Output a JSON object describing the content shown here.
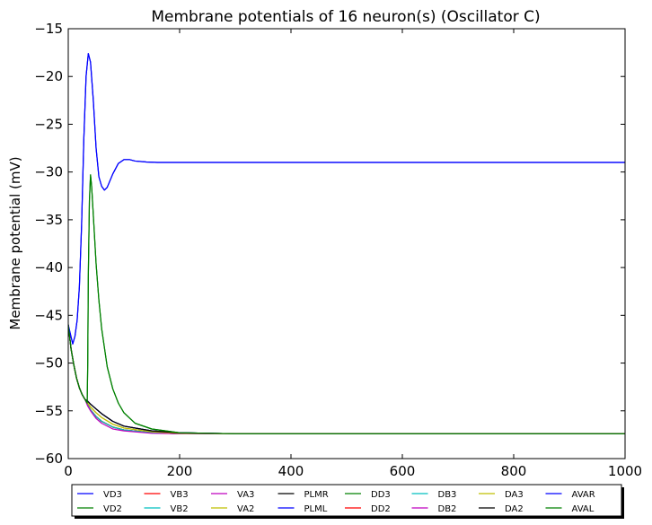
{
  "chart_data": {
    "type": "line",
    "title": "Membrane potentials of 16 neuron(s) (Oscillator C)",
    "xlabel": "",
    "ylabel": "Membrane potential (mV)",
    "xlim": [
      0,
      1000
    ],
    "ylim": [
      -60,
      -15
    ],
    "xticks": [
      0,
      200,
      400,
      600,
      800,
      1000
    ],
    "yticks": [
      -60,
      -55,
      -50,
      -45,
      -40,
      -35,
      -30,
      -25,
      -20,
      -15
    ],
    "grid": false,
    "legend_position": "bottom",
    "series": [
      {
        "name": "VD3",
        "color": "#0000ff",
        "x": [
          0,
          4,
          8,
          12,
          16,
          20,
          24,
          28,
          32,
          36,
          40,
          45,
          50,
          55,
          60,
          65,
          70,
          80,
          90,
          100,
          110,
          120,
          140,
          160,
          200,
          300,
          400,
          600,
          800,
          1000
        ],
        "y": [
          -46,
          -47,
          -48,
          -47.2,
          -45.5,
          -42,
          -35.5,
          -26.5,
          -20,
          -17.6,
          -18.5,
          -22.5,
          -27.5,
          -30.5,
          -31.5,
          -31.9,
          -31.6,
          -30.2,
          -29.1,
          -28.7,
          -28.7,
          -28.85,
          -28.95,
          -29,
          -29,
          -29,
          -29,
          -29,
          -29,
          -29
        ]
      },
      {
        "name": "VD2",
        "color": "#008000",
        "x": [
          0,
          5,
          10,
          15,
          20,
          25,
          30,
          34,
          35,
          36,
          38,
          40,
          42,
          45,
          50,
          55,
          60,
          70,
          80,
          90,
          100,
          120,
          150,
          200,
          300,
          500,
          1000
        ],
        "y": [
          -46,
          -48.5,
          -50.2,
          -51.6,
          -52.6,
          -53.3,
          -53.8,
          -54.2,
          -50,
          -41,
          -33,
          -30.3,
          -31.5,
          -34.5,
          -39.6,
          -43.4,
          -46.4,
          -50.4,
          -52.7,
          -54.2,
          -55.2,
          -56.3,
          -56.9,
          -57.3,
          -57.4,
          -57.4,
          -57.4
        ]
      },
      {
        "name": "VB3",
        "color": "#ff0000",
        "x": [
          0,
          5,
          10,
          15,
          20,
          25,
          30,
          35,
          40,
          50,
          60,
          80,
          100,
          150,
          200,
          300,
          500,
          1000
        ],
        "y": [
          -46,
          -48.5,
          -50.2,
          -51.6,
          -52.6,
          -53.3,
          -53.8,
          -54.4,
          -54.9,
          -55.6,
          -56.1,
          -56.7,
          -57,
          -57.3,
          -57.4,
          -57.4,
          -57.4,
          -57.4
        ]
      },
      {
        "name": "VB2",
        "color": "#00bfbf",
        "x": [
          0,
          5,
          10,
          15,
          20,
          25,
          30,
          35,
          40,
          50,
          60,
          80,
          100,
          150,
          200,
          300,
          500,
          1000
        ],
        "y": [
          -46,
          -48.5,
          -50.2,
          -51.6,
          -52.6,
          -53.3,
          -53.8,
          -54.4,
          -54.9,
          -55.6,
          -56.1,
          -56.7,
          -57,
          -57.3,
          -57.4,
          -57.4,
          -57.4,
          -57.4
        ]
      },
      {
        "name": "VA3",
        "color": "#bf00bf",
        "x": [
          0,
          5,
          10,
          15,
          20,
          25,
          30,
          35,
          40,
          50,
          60,
          80,
          100,
          150,
          200,
          300,
          500,
          1000
        ],
        "y": [
          -46,
          -48.5,
          -50.2,
          -51.6,
          -52.6,
          -53.3,
          -53.8,
          -54.4,
          -54.9,
          -55.6,
          -56.1,
          -56.7,
          -57,
          -57.3,
          -57.4,
          -57.4,
          -57.4,
          -57.4
        ]
      },
      {
        "name": "VA2",
        "color": "#bfbf00",
        "x": [
          0,
          5,
          10,
          15,
          20,
          25,
          30,
          35,
          40,
          50,
          60,
          80,
          100,
          150,
          200,
          300,
          500,
          1000
        ],
        "y": [
          -46,
          -48.5,
          -50.2,
          -51.6,
          -52.6,
          -53.3,
          -53.8,
          -54.2,
          -54.6,
          -55.2,
          -55.7,
          -56.4,
          -56.8,
          -57.2,
          -57.35,
          -57.4,
          -57.4,
          -57.4
        ]
      },
      {
        "name": "PLMR",
        "color": "#000000",
        "x": [
          0,
          5,
          10,
          15,
          20,
          25,
          30,
          35,
          40,
          50,
          60,
          80,
          100,
          150,
          200,
          300,
          500,
          1000
        ],
        "y": [
          -46,
          -48.5,
          -50.2,
          -51.6,
          -52.6,
          -53.3,
          -53.8,
          -54,
          -54.3,
          -54.8,
          -55.3,
          -56.1,
          -56.6,
          -57.1,
          -57.3,
          -57.4,
          -57.4,
          -57.4
        ]
      },
      {
        "name": "PLML",
        "color": "#0000ff",
        "x": [
          0,
          5,
          10,
          15,
          20,
          25,
          30,
          35,
          40,
          50,
          60,
          80,
          100,
          150,
          200,
          300,
          500,
          1000
        ],
        "y": [
          -46,
          -48.5,
          -50.2,
          -51.6,
          -52.6,
          -53.3,
          -53.8,
          -54,
          -54.3,
          -54.8,
          -55.3,
          -56.1,
          -56.6,
          -57.1,
          -57.3,
          -57.4,
          -57.4,
          -57.4
        ]
      },
      {
        "name": "DD3",
        "color": "#008000",
        "x": [
          0,
          5,
          10,
          15,
          20,
          25,
          30,
          35,
          40,
          50,
          60,
          80,
          100,
          150,
          200,
          300,
          500,
          1000
        ],
        "y": [
          -46,
          -48.5,
          -50.2,
          -51.6,
          -52.6,
          -53.3,
          -53.8,
          -54.4,
          -54.9,
          -55.6,
          -56.1,
          -56.7,
          -57,
          -57.3,
          -57.4,
          -57.4,
          -57.4,
          -57.4
        ]
      },
      {
        "name": "DD2",
        "color": "#ff0000",
        "x": [
          0,
          5,
          10,
          15,
          20,
          25,
          30,
          35,
          40,
          50,
          60,
          80,
          100,
          150,
          200,
          300,
          500,
          1000
        ],
        "y": [
          -46,
          -48.5,
          -50.2,
          -51.6,
          -52.6,
          -53.3,
          -53.8,
          -54.4,
          -54.9,
          -55.6,
          -56.1,
          -56.7,
          -57,
          -57.3,
          -57.4,
          -57.4,
          -57.4,
          -57.4
        ]
      },
      {
        "name": "DB3",
        "color": "#00bfbf",
        "x": [
          0,
          5,
          10,
          15,
          20,
          25,
          30,
          35,
          40,
          50,
          60,
          80,
          100,
          150,
          200,
          300,
          500,
          1000
        ],
        "y": [
          -46,
          -48.5,
          -50.2,
          -51.6,
          -52.6,
          -53.3,
          -53.8,
          -54.4,
          -54.9,
          -55.6,
          -56.1,
          -56.7,
          -57,
          -57.3,
          -57.4,
          -57.4,
          -57.4,
          -57.4
        ]
      },
      {
        "name": "DB2",
        "color": "#bf00bf",
        "x": [
          0,
          5,
          10,
          15,
          20,
          25,
          30,
          35,
          40,
          50,
          60,
          80,
          100,
          150,
          200,
          300,
          500,
          1000
        ],
        "y": [
          -46,
          -48.5,
          -50.2,
          -51.6,
          -52.6,
          -53.3,
          -53.8,
          -54.5,
          -55,
          -55.8,
          -56.3,
          -56.9,
          -57.1,
          -57.35,
          -57.4,
          -57.4,
          -57.4,
          -57.4
        ]
      },
      {
        "name": "DA3",
        "color": "#bfbf00",
        "x": [
          0,
          5,
          10,
          15,
          20,
          25,
          30,
          35,
          40,
          50,
          60,
          80,
          100,
          150,
          200,
          300,
          500,
          1000
        ],
        "y": [
          -46,
          -48.5,
          -50.2,
          -51.6,
          -52.6,
          -53.3,
          -53.8,
          -54.2,
          -54.6,
          -55.2,
          -55.7,
          -56.4,
          -56.8,
          -57.2,
          -57.35,
          -57.4,
          -57.4,
          -57.4
        ]
      },
      {
        "name": "DA2",
        "color": "#000000",
        "x": [
          0,
          5,
          10,
          15,
          20,
          25,
          30,
          35,
          40,
          50,
          60,
          80,
          100,
          150,
          200,
          300,
          500,
          1000
        ],
        "y": [
          -46,
          -48.5,
          -50.2,
          -51.6,
          -52.6,
          -53.3,
          -53.8,
          -54,
          -54.3,
          -54.8,
          -55.3,
          -56.1,
          -56.6,
          -57.1,
          -57.3,
          -57.4,
          -57.4,
          -57.4
        ]
      },
      {
        "name": "AVAR",
        "color": "#0000ff",
        "x": [
          0,
          4,
          8,
          12,
          16,
          20,
          24,
          28,
          32,
          36,
          40,
          45,
          50,
          55,
          60,
          65,
          70,
          80,
          90,
          100,
          110,
          120,
          140,
          160,
          200,
          300,
          400,
          600,
          800,
          1000
        ],
        "y": [
          -46,
          -47,
          -48,
          -47.2,
          -45.5,
          -42,
          -35.5,
          -26.5,
          -20,
          -17.6,
          -18.5,
          -22.5,
          -27.5,
          -30.5,
          -31.5,
          -31.9,
          -31.6,
          -30.2,
          -29.1,
          -28.7,
          -28.7,
          -28.85,
          -28.95,
          -29,
          -29,
          -29,
          -29,
          -29,
          -29,
          -29
        ]
      },
      {
        "name": "AVAL",
        "color": "#008000",
        "x": [
          0,
          5,
          10,
          15,
          20,
          25,
          30,
          34,
          35,
          36,
          38,
          40,
          42,
          45,
          50,
          55,
          60,
          70,
          80,
          90,
          100,
          120,
          150,
          200,
          300,
          500,
          1000
        ],
        "y": [
          -46,
          -48.5,
          -50.2,
          -51.6,
          -52.6,
          -53.3,
          -53.8,
          -54.2,
          -50,
          -41,
          -33,
          -30.3,
          -31.5,
          -34.5,
          -39.6,
          -43.4,
          -46.4,
          -50.4,
          -52.7,
          -54.2,
          -55.2,
          -56.3,
          -56.9,
          -57.3,
          -57.4,
          -57.4,
          -57.4
        ]
      }
    ]
  }
}
